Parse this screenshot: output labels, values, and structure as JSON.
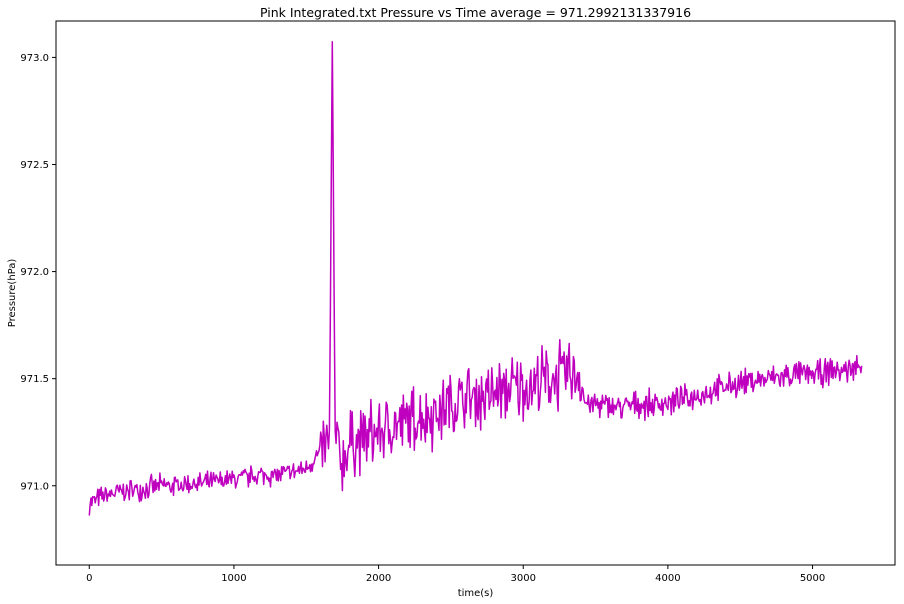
{
  "chart_data": {
    "type": "line",
    "title": "Pink Integrated.txt  Pressure vs Time  average = 971.2992131337916",
    "xlabel": "time(s)",
    "ylabel": "Pressure(hPa)",
    "xlim": [
      -230,
      5570
    ],
    "ylim": [
      970.63,
      973.17
    ],
    "xticks": [
      0,
      1000,
      2000,
      3000,
      4000,
      5000
    ],
    "xtick_labels": [
      "0",
      "1000",
      "2000",
      "3000",
      "4000",
      "5000"
    ],
    "yticks": [
      971.0,
      971.5,
      972.0,
      972.5,
      973.0
    ],
    "ytick_labels": [
      "971.0",
      "971.5",
      "972.0",
      "972.5",
      "973.0"
    ],
    "grid": false,
    "line_color": "#BF00BF",
    "series": [
      {
        "x": [
          0,
          100,
          200,
          300,
          400,
          500,
          600,
          700,
          800,
          900,
          1000,
          1100,
          1200,
          1300,
          1400,
          1500,
          1600,
          1660,
          1680,
          1700,
          1750,
          1800,
          1900,
          2000,
          2100,
          2200,
          2300,
          2400,
          2500,
          2600,
          2700,
          2800,
          2900,
          3000,
          3100,
          3200,
          3300,
          3400,
          3420,
          3450,
          3500,
          3600,
          3700,
          3800,
          3900,
          4000,
          4100,
          4200,
          4300,
          4400,
          4500,
          4600,
          4700,
          4800,
          4900,
          5000,
          5100,
          5200,
          5300,
          5340
        ],
        "y": [
          970.92,
          970.95,
          970.97,
          970.98,
          970.99,
          971.0,
          971.0,
          971.01,
          971.01,
          971.02,
          971.03,
          971.04,
          971.05,
          971.05,
          971.06,
          971.08,
          971.16,
          971.2,
          973.07,
          971.22,
          971.1,
          971.2,
          971.22,
          971.25,
          971.27,
          971.3,
          971.32,
          971.34,
          971.38,
          971.4,
          971.42,
          971.43,
          971.45,
          971.46,
          971.48,
          971.5,
          971.52,
          971.53,
          971.4,
          971.38,
          971.38,
          971.37,
          971.37,
          971.38,
          971.38,
          971.39,
          971.4,
          971.42,
          971.44,
          971.46,
          971.48,
          971.49,
          971.5,
          971.51,
          971.52,
          971.52,
          971.53,
          971.54,
          971.55,
          971.56
        ]
      }
    ]
  }
}
